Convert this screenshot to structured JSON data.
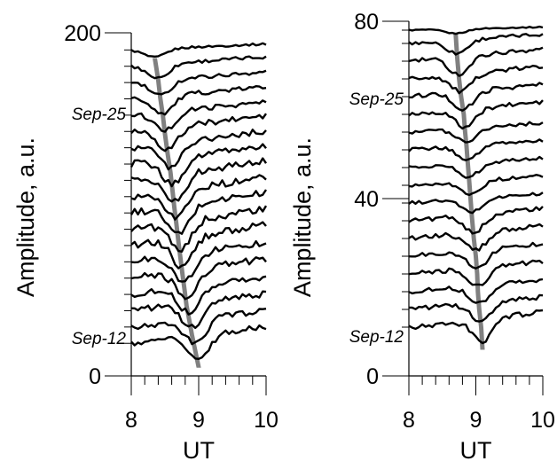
{
  "chart_data": [
    {
      "type": "line",
      "panel": "left",
      "ylabel": "Amplitude, a.u.",
      "xlabel": "UT",
      "xlim": [
        8,
        10
      ],
      "ylim": [
        0,
        200
      ],
      "x_ticks": [
        "8",
        "9",
        "10"
      ],
      "y_ticks": [
        "0",
        "200"
      ],
      "annotations": [
        {
          "text": "Sep-25"
        },
        {
          "text": "Sep-12"
        }
      ],
      "trace_offsets": [
        190,
        180.5,
        171,
        161.5,
        152,
        142.5,
        133,
        123.5,
        114,
        104.5,
        95,
        85.5,
        76,
        66.5,
        57,
        47.5,
        38,
        28.5,
        19
      ],
      "minimum_times": [
        8.35,
        8.4,
        8.43,
        8.47,
        8.5,
        8.54,
        8.58,
        8.61,
        8.64,
        8.67,
        8.7,
        8.73,
        8.76,
        8.79,
        8.82,
        8.86,
        8.9,
        8.95,
        9.0
      ],
      "minimum_depth": [
        5,
        8,
        9,
        10,
        11,
        13,
        14,
        15,
        16,
        16,
        17,
        17,
        17,
        16,
        16,
        15,
        14,
        14,
        14
      ]
    },
    {
      "type": "line",
      "panel": "right",
      "ylabel": "Amplitude, a.u.",
      "xlabel": "UT",
      "xlim": [
        8,
        10
      ],
      "ylim": [
        0,
        80
      ],
      "x_ticks": [
        "8",
        "9",
        "10"
      ],
      "y_ticks": [
        "0",
        "40",
        "80"
      ],
      "annotations": [
        {
          "text": "Sep-25"
        },
        {
          "text": "Sep-12"
        }
      ],
      "trace_offsets": [
        78,
        75,
        71,
        67,
        63,
        59,
        55,
        51,
        47,
        43,
        39,
        35,
        31,
        27,
        23,
        19,
        15,
        11
      ],
      "minimum_times": [
        8.7,
        8.72,
        8.75,
        8.78,
        8.82,
        8.84,
        8.86,
        8.88,
        8.9,
        8.92,
        8.94,
        8.97,
        9.0,
        9.02,
        9.03,
        9.05,
        9.08,
        9.1
      ],
      "minimum_depth": [
        1,
        3,
        4,
        4,
        4,
        4,
        3,
        3,
        3,
        3,
        3,
        4,
        4,
        4,
        4,
        4,
        4,
        5
      ]
    }
  ]
}
